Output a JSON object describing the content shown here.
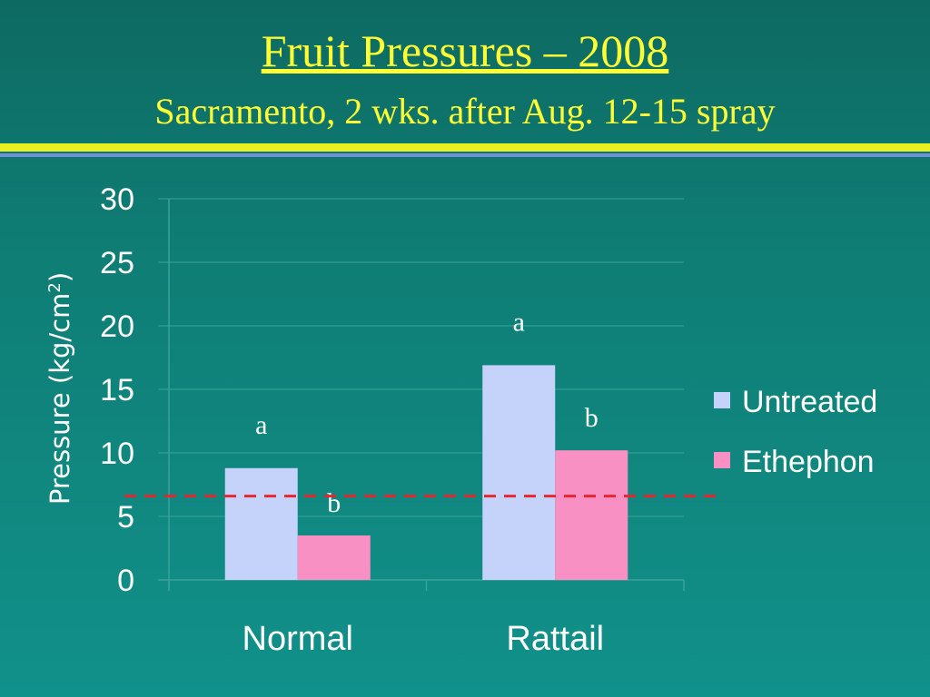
{
  "slide": {
    "title": "Fruit Pressures – 2008",
    "subtitle": "Sacramento, 2 wks. after Aug. 12-15 spray"
  },
  "colors": {
    "background": "#0f7d74",
    "title": "#ffff33",
    "rule_yellow": "#e8f022",
    "rule_blue": "#6f8fd8",
    "untreated": "#c5d3fa",
    "ethephon": "#f990c4",
    "threshold": "#e8262e",
    "text": "#ffffff",
    "grid": "#3aa39a"
  },
  "chart_data": {
    "type": "bar",
    "categories": [
      "Normal",
      "Rattail"
    ],
    "series": [
      {
        "name": "Untreated",
        "values": [
          8.8,
          16.9
        ],
        "letters": [
          "a",
          "a"
        ]
      },
      {
        "name": "Ethephon",
        "values": [
          3.5,
          10.2
        ],
        "letters": [
          "b",
          "b"
        ]
      }
    ],
    "ylabel": "Pressure (kg/cm",
    "ylabel_superscript": "2",
    "ylabel_suffix": ")",
    "ylim": [
      0,
      30
    ],
    "yticks": [
      "0",
      "5",
      "10",
      "15",
      "20",
      "25",
      "30"
    ],
    "threshold": 6.6,
    "grid": true,
    "legend_position": "right"
  }
}
